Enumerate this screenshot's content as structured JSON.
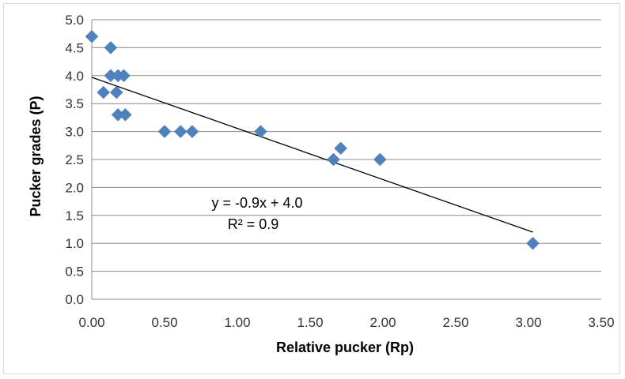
{
  "chart_data": {
    "type": "scatter",
    "title": "",
    "xlabel": "Relative pucker (Rp)",
    "ylabel": "Pucker grades (P)",
    "xlim": [
      0,
      3.5
    ],
    "ylim": [
      0,
      5
    ],
    "xticks": [
      "0.00",
      "0.50",
      "1.00",
      "1.50",
      "2.00",
      "2.50",
      "3.00",
      "3.50"
    ],
    "yticks": [
      "0.0",
      "0.5",
      "1.0",
      "1.5",
      "2.0",
      "2.5",
      "3.0",
      "3.5",
      "4.0",
      "4.5",
      "5.0"
    ],
    "grid": "horizontal",
    "legend": "none",
    "marker": "diamond",
    "marker_color": "#4f81bd",
    "trendline_color": "#000000",
    "points": [
      {
        "x": 0.0,
        "y": 4.7
      },
      {
        "x": 0.13,
        "y": 4.5
      },
      {
        "x": 0.13,
        "y": 4.0
      },
      {
        "x": 0.18,
        "y": 4.0
      },
      {
        "x": 0.22,
        "y": 4.0
      },
      {
        "x": 0.08,
        "y": 3.7
      },
      {
        "x": 0.17,
        "y": 3.7
      },
      {
        "x": 0.18,
        "y": 3.3
      },
      {
        "x": 0.23,
        "y": 3.3
      },
      {
        "x": 0.5,
        "y": 3.0
      },
      {
        "x": 0.61,
        "y": 3.0
      },
      {
        "x": 0.69,
        "y": 3.0
      },
      {
        "x": 1.16,
        "y": 3.0
      },
      {
        "x": 1.66,
        "y": 2.5
      },
      {
        "x": 1.71,
        "y": 2.7
      },
      {
        "x": 1.98,
        "y": 2.5
      },
      {
        "x": 3.03,
        "y": 1.0
      }
    ],
    "trendline": {
      "x_start": 0.0,
      "y_start": 3.97,
      "x_end": 3.03,
      "y_end": 1.2
    },
    "annotations": [
      "y = -0.9x + 4.0",
      "R² = 0.9"
    ]
  }
}
